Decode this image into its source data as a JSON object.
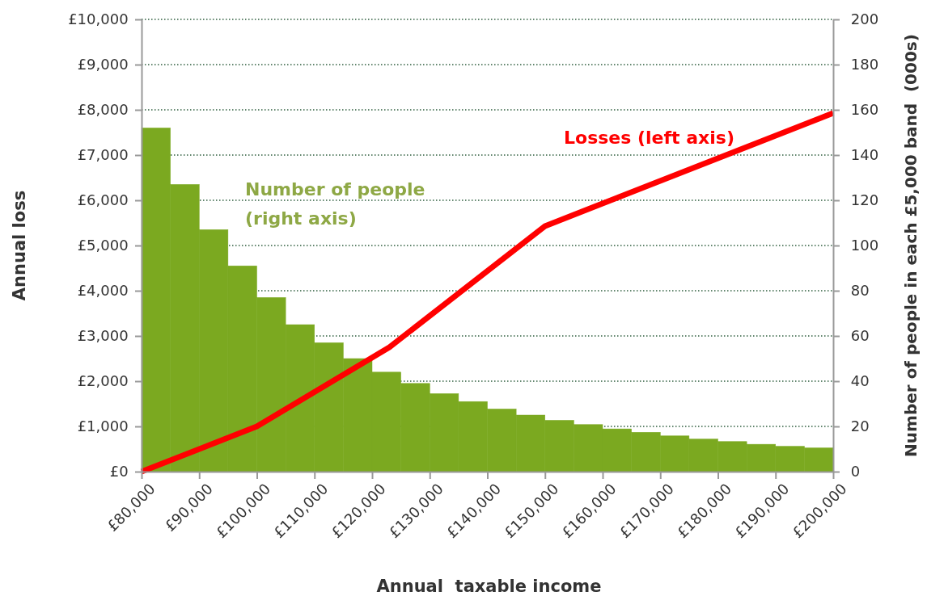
{
  "chart_data": {
    "type": "histogram",
    "xlabel": "Annual  taxable income",
    "ylabel": "Annual loss",
    "y2label": "Number of people in each £5,000 band  (000s)",
    "bins": [
      80000,
      85000,
      90000,
      95000,
      100000,
      105000,
      110000,
      115000,
      120000,
      125000,
      130000,
      135000,
      140000,
      145000,
      150000,
      155000,
      160000,
      165000,
      170000,
      175000,
      180000,
      185000,
      190000,
      195000,
      200000
    ],
    "series": [
      {
        "type": "histogram",
        "axis": "y2",
        "name": "Number of people\n(right axis)",
        "color": "#7ba920",
        "values": [
          152,
          127,
          107,
          91,
          77,
          65,
          57,
          50,
          44,
          39,
          34.5,
          31,
          27.7,
          25,
          22.7,
          20.8,
          18.9,
          17.4,
          15.8,
          14.4,
          13.3,
          12.1,
          11.2,
          10.5
        ]
      },
      {
        "type": "line",
        "name": "Losses (left axis)",
        "color": "#ff0000",
        "x": [
          80000,
          100000,
          123000,
          150000,
          200000
        ],
        "values": [
          0,
          1000,
          2750,
          5430,
          7930
        ]
      }
    ],
    "xlim": [
      80000,
      200000
    ],
    "xticks": [
      {
        "value": 80000,
        "label": "£80,000"
      },
      {
        "value": 90000,
        "label": "£90,000"
      },
      {
        "value": 100000,
        "label": "£100,000"
      },
      {
        "value": 110000,
        "label": "£110,000"
      },
      {
        "value": 120000,
        "label": "£120,000"
      },
      {
        "value": 130000,
        "label": "£130,000"
      },
      {
        "value": 140000,
        "label": "£140,000"
      },
      {
        "value": 150000,
        "label": "£150,000"
      },
      {
        "value": 160000,
        "label": "£160,000"
      },
      {
        "value": 170000,
        "label": "£170,000"
      },
      {
        "value": 180000,
        "label": "£180,000"
      },
      {
        "value": 190000,
        "label": "£190,000"
      },
      {
        "value": 200000,
        "label": "£200,000"
      }
    ],
    "ylim": [
      0,
      10000
    ],
    "yticks": [
      {
        "value": 0,
        "label": "£0"
      },
      {
        "value": 1000,
        "label": "£1,000"
      },
      {
        "value": 2000,
        "label": "£2,000"
      },
      {
        "value": 3000,
        "label": "£3,000"
      },
      {
        "value": 4000,
        "label": "£4,000"
      },
      {
        "value": 5000,
        "label": "£5,000"
      },
      {
        "value": 6000,
        "label": "£6,000"
      },
      {
        "value": 7000,
        "label": "£7,000"
      },
      {
        "value": 8000,
        "label": "£8,000"
      },
      {
        "value": 9000,
        "label": "£9,000"
      },
      {
        "value": 10000,
        "label": "£10,000"
      }
    ],
    "y2lim": [
      0,
      200
    ],
    "y2ticks": [
      0,
      20,
      40,
      60,
      80,
      100,
      120,
      140,
      160,
      180,
      200
    ],
    "grid": "y",
    "line_style": "solid",
    "marker": "none"
  }
}
